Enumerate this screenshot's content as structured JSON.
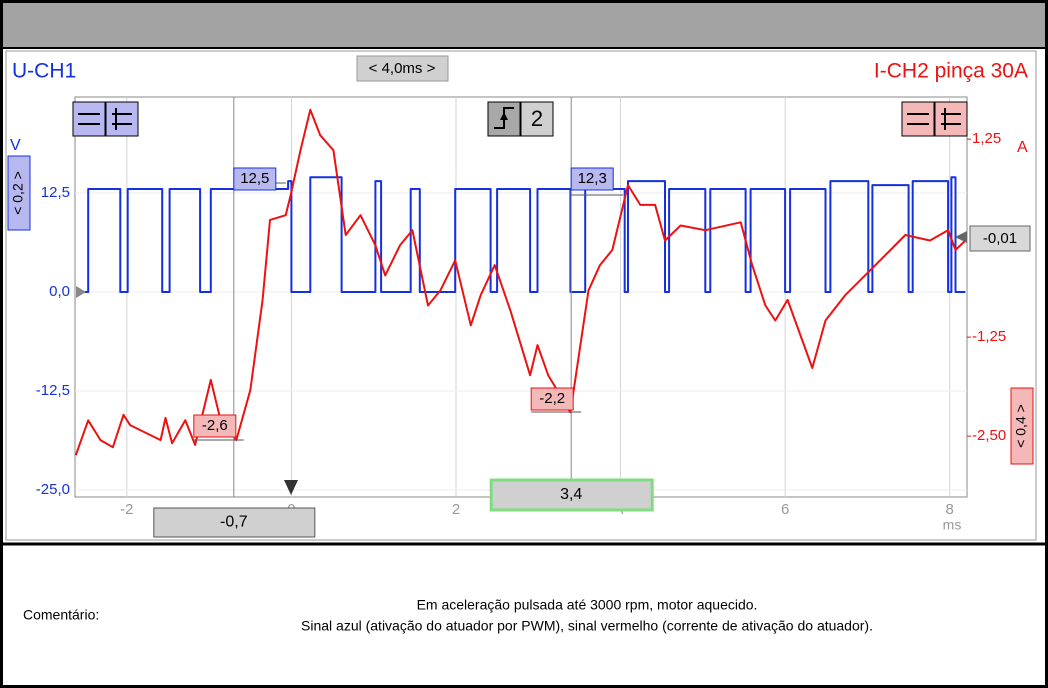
{
  "chart_data": {
    "type": "line",
    "series": [
      {
        "name": "U-CH1",
        "color": "#1430e0",
        "axis": "y",
        "x": [
          -2.59,
          -2.47,
          -2.47,
          -2.08,
          -2.08,
          -1.99,
          -1.99,
          -1.57,
          -1.57,
          -1.48,
          -1.48,
          -1.11,
          -1.11,
          -0.98,
          -0.98,
          -0.04,
          -0.04,
          0,
          0,
          0.23,
          0.23,
          0.61,
          0.61,
          1.02,
          1.02,
          1.09,
          1.09,
          1.45,
          1.45,
          1.56,
          1.56,
          1.99,
          1.99,
          2.42,
          2.42,
          2.5,
          2.5,
          2.9,
          2.9,
          2.99,
          2.99,
          3.39,
          3.39,
          3.57,
          3.57,
          4.05,
          4.05,
          4.09,
          4.09,
          4.54,
          4.54,
          4.59,
          4.59,
          5.03,
          5.03,
          5.09,
          5.09,
          5.52,
          5.52,
          5.58,
          5.58,
          6.0,
          6.0,
          6.06,
          6.06,
          6.49,
          6.49,
          6.55,
          6.55,
          7.01,
          7.01,
          7.06,
          7.06,
          7.5,
          7.5,
          7.55,
          7.55,
          7.98,
          7.98,
          8.02,
          8.02,
          8.07,
          8.07,
          8.19
        ],
        "values": [
          0,
          0,
          13,
          13,
          0,
          0,
          13,
          13,
          0,
          0,
          13,
          13,
          0,
          0,
          13,
          13,
          14,
          14,
          0,
          0,
          14.5,
          14.5,
          0,
          0,
          14,
          14,
          0,
          0,
          13,
          13,
          0,
          0,
          13,
          13,
          0,
          0,
          13,
          13,
          0,
          0,
          13,
          13,
          0,
          0,
          13,
          13,
          0,
          0,
          14,
          14,
          0,
          0,
          13,
          13,
          0,
          0,
          13,
          13,
          0,
          0,
          13,
          13,
          0,
          0,
          13,
          13,
          0,
          0,
          14,
          14,
          0,
          0,
          13.5,
          13.5,
          0,
          0,
          14,
          14,
          0,
          0,
          14.5,
          14.5,
          0,
          0
        ]
      },
      {
        "name": "I-CH2 pinça 30A",
        "color": "#ee1111",
        "axis": "y2",
        "x": [
          -2.62,
          -2.47,
          -2.32,
          -2.17,
          -2.04,
          -1.96,
          -1.59,
          -1.53,
          -1.45,
          -1.29,
          -1.17,
          -0.98,
          -0.86,
          -0.67,
          -0.5,
          -0.35,
          -0.26,
          -0.07,
          -0.01,
          0.11,
          0.23,
          0.35,
          0.51,
          0.66,
          0.84,
          1.02,
          1.14,
          1.32,
          1.47,
          1.66,
          1.81,
          1.99,
          2.18,
          2.3,
          2.47,
          2.66,
          2.9,
          2.99,
          3.12,
          3.39,
          3.61,
          3.75,
          3.9,
          4.09,
          4.24,
          4.42,
          4.54,
          4.73,
          5.03,
          5.46,
          5.6,
          5.76,
          5.88,
          6.03,
          6.33,
          6.49,
          6.73,
          7.04,
          7.28,
          7.46,
          7.76,
          7.98,
          8.07,
          8.19
        ],
        "values": [
          -2.74,
          -2.3,
          -2.55,
          -2.64,
          -2.23,
          -2.36,
          -2.55,
          -2.27,
          -2.59,
          -2.3,
          -2.61,
          -1.79,
          -2.3,
          -2.55,
          -1.92,
          -0.78,
          0.23,
          0.29,
          0.54,
          1.11,
          1.62,
          1.3,
          1.11,
          0.04,
          0.29,
          -0.09,
          -0.47,
          -0.09,
          0.1,
          -0.85,
          -0.66,
          -0.28,
          -1.1,
          -0.72,
          -0.34,
          -0.91,
          -1.73,
          -1.35,
          -1.73,
          -2.2,
          -0.66,
          -0.34,
          -0.15,
          0.67,
          0.42,
          0.42,
          -0.03,
          0.16,
          0.1,
          0.2,
          -0.34,
          -0.85,
          -1.04,
          -0.78,
          -1.64,
          -1.04,
          -0.72,
          -0.4,
          -0.15,
          0.04,
          -0.03,
          0.1,
          -0.15,
          -0.03
        ]
      }
    ],
    "xlim": [
      -2.63,
      8.21
    ],
    "xticks": [
      -2,
      0,
      2,
      4,
      6,
      8
    ],
    "xlabel": "ms",
    "ylim": [
      -25,
      25
    ],
    "yticks": [
      {
        "value": 12.5,
        "label": "12,5"
      },
      {
        "value": 0,
        "label": "0,0"
      },
      {
        "value": -12.5,
        "label": "-12,5"
      },
      {
        "value": -25,
        "label": "-25,0"
      }
    ],
    "ylabel": "V",
    "y2lim": [
      -3.18,
      1.82
    ],
    "y2ticks": [
      {
        "value": 1.25,
        "label": "1,25"
      },
      {
        "value": -1.25,
        "label": "-1,25"
      },
      {
        "value": -2.5,
        "label": "-2,50"
      }
    ],
    "y2label": "A",
    "grid": true,
    "timebase": "< 4,0ms >",
    "y_scale": "< 0,2 >",
    "y2_scale": "< 0,4 >",
    "offset_readout": "-0,01",
    "trigger_channel": "2",
    "cursors": [
      {
        "value": -0.7,
        "label": "-0,7"
      },
      {
        "value": 3.4,
        "label": "3,4"
      }
    ],
    "readouts": [
      "12,5",
      "12,3",
      "-2,6",
      "-2,2"
    ]
  },
  "comment": {
    "label": "Comentário:",
    "lines": [
      "Em aceleração pulsada até 3000 rpm, motor aquecido.",
      "Sinal azul (ativação do atuador por PWM), sinal vermelho (corrente de ativação do atuador)."
    ]
  }
}
